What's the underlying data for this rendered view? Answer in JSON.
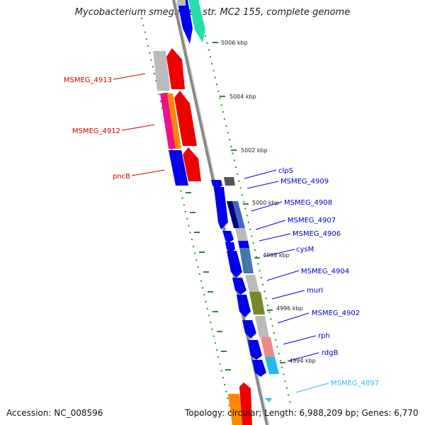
{
  "title": "Mycobacterium smegmatis str. MC2 155, complete genome",
  "accession": "Accession: NC_008596",
  "summary": "Topology: circular; Length: 6,988,209 bp; Genes: 6,770",
  "colors": {
    "backbone": "#888888",
    "left_labels": "#cc0000",
    "right_labels": "#0000cc",
    "highlight_label": "#33bbee",
    "tick_minor": "#2a8a2a",
    "dots": "#2a8a2a"
  },
  "kbp_ticks": [
    "5006 kbp",
    "5004 kbp",
    "5002 kbp",
    "5000 kbp",
    "4998 kbp",
    "4996 kbp",
    "4994 kbp"
  ],
  "left_genes": [
    "MSMEG_4913",
    "MSMEG_4912",
    "pncB"
  ],
  "right_genes": [
    "clpS",
    "MSMEG_4909",
    "MSMEG_4908",
    "MSMEG_4907",
    "MSMEG_4906",
    "cysM",
    "MSMEG_4904",
    "murI",
    "MSMEG_4902",
    "rph",
    "rdgB",
    "MSMEG_4897"
  ]
}
